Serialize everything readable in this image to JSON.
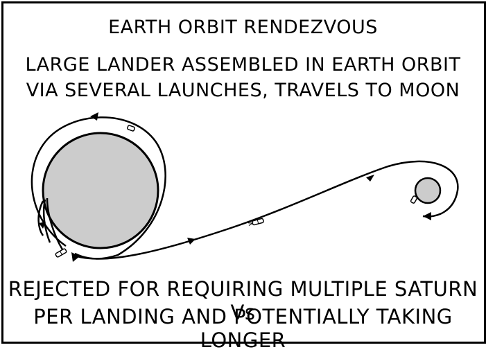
{
  "title": "EARTH ORBIT RENDEZVOUS",
  "subtitle_lines": [
    "LARGE LANDER ASSEMBLED IN EARTH ORBIT",
    "VIA SEVERAL LAUNCHES, TRAVELS TO MOON"
  ],
  "caption_lines": [
    "REJECTED FOR REQUIRING MULTIPLE SATURN Vs",
    "PER LANDING AND POTENTIALLY TAKING LONGER"
  ],
  "colors": {
    "ink": "#000000",
    "planet_fill": "#cccccc",
    "background": "#ffffff"
  }
}
